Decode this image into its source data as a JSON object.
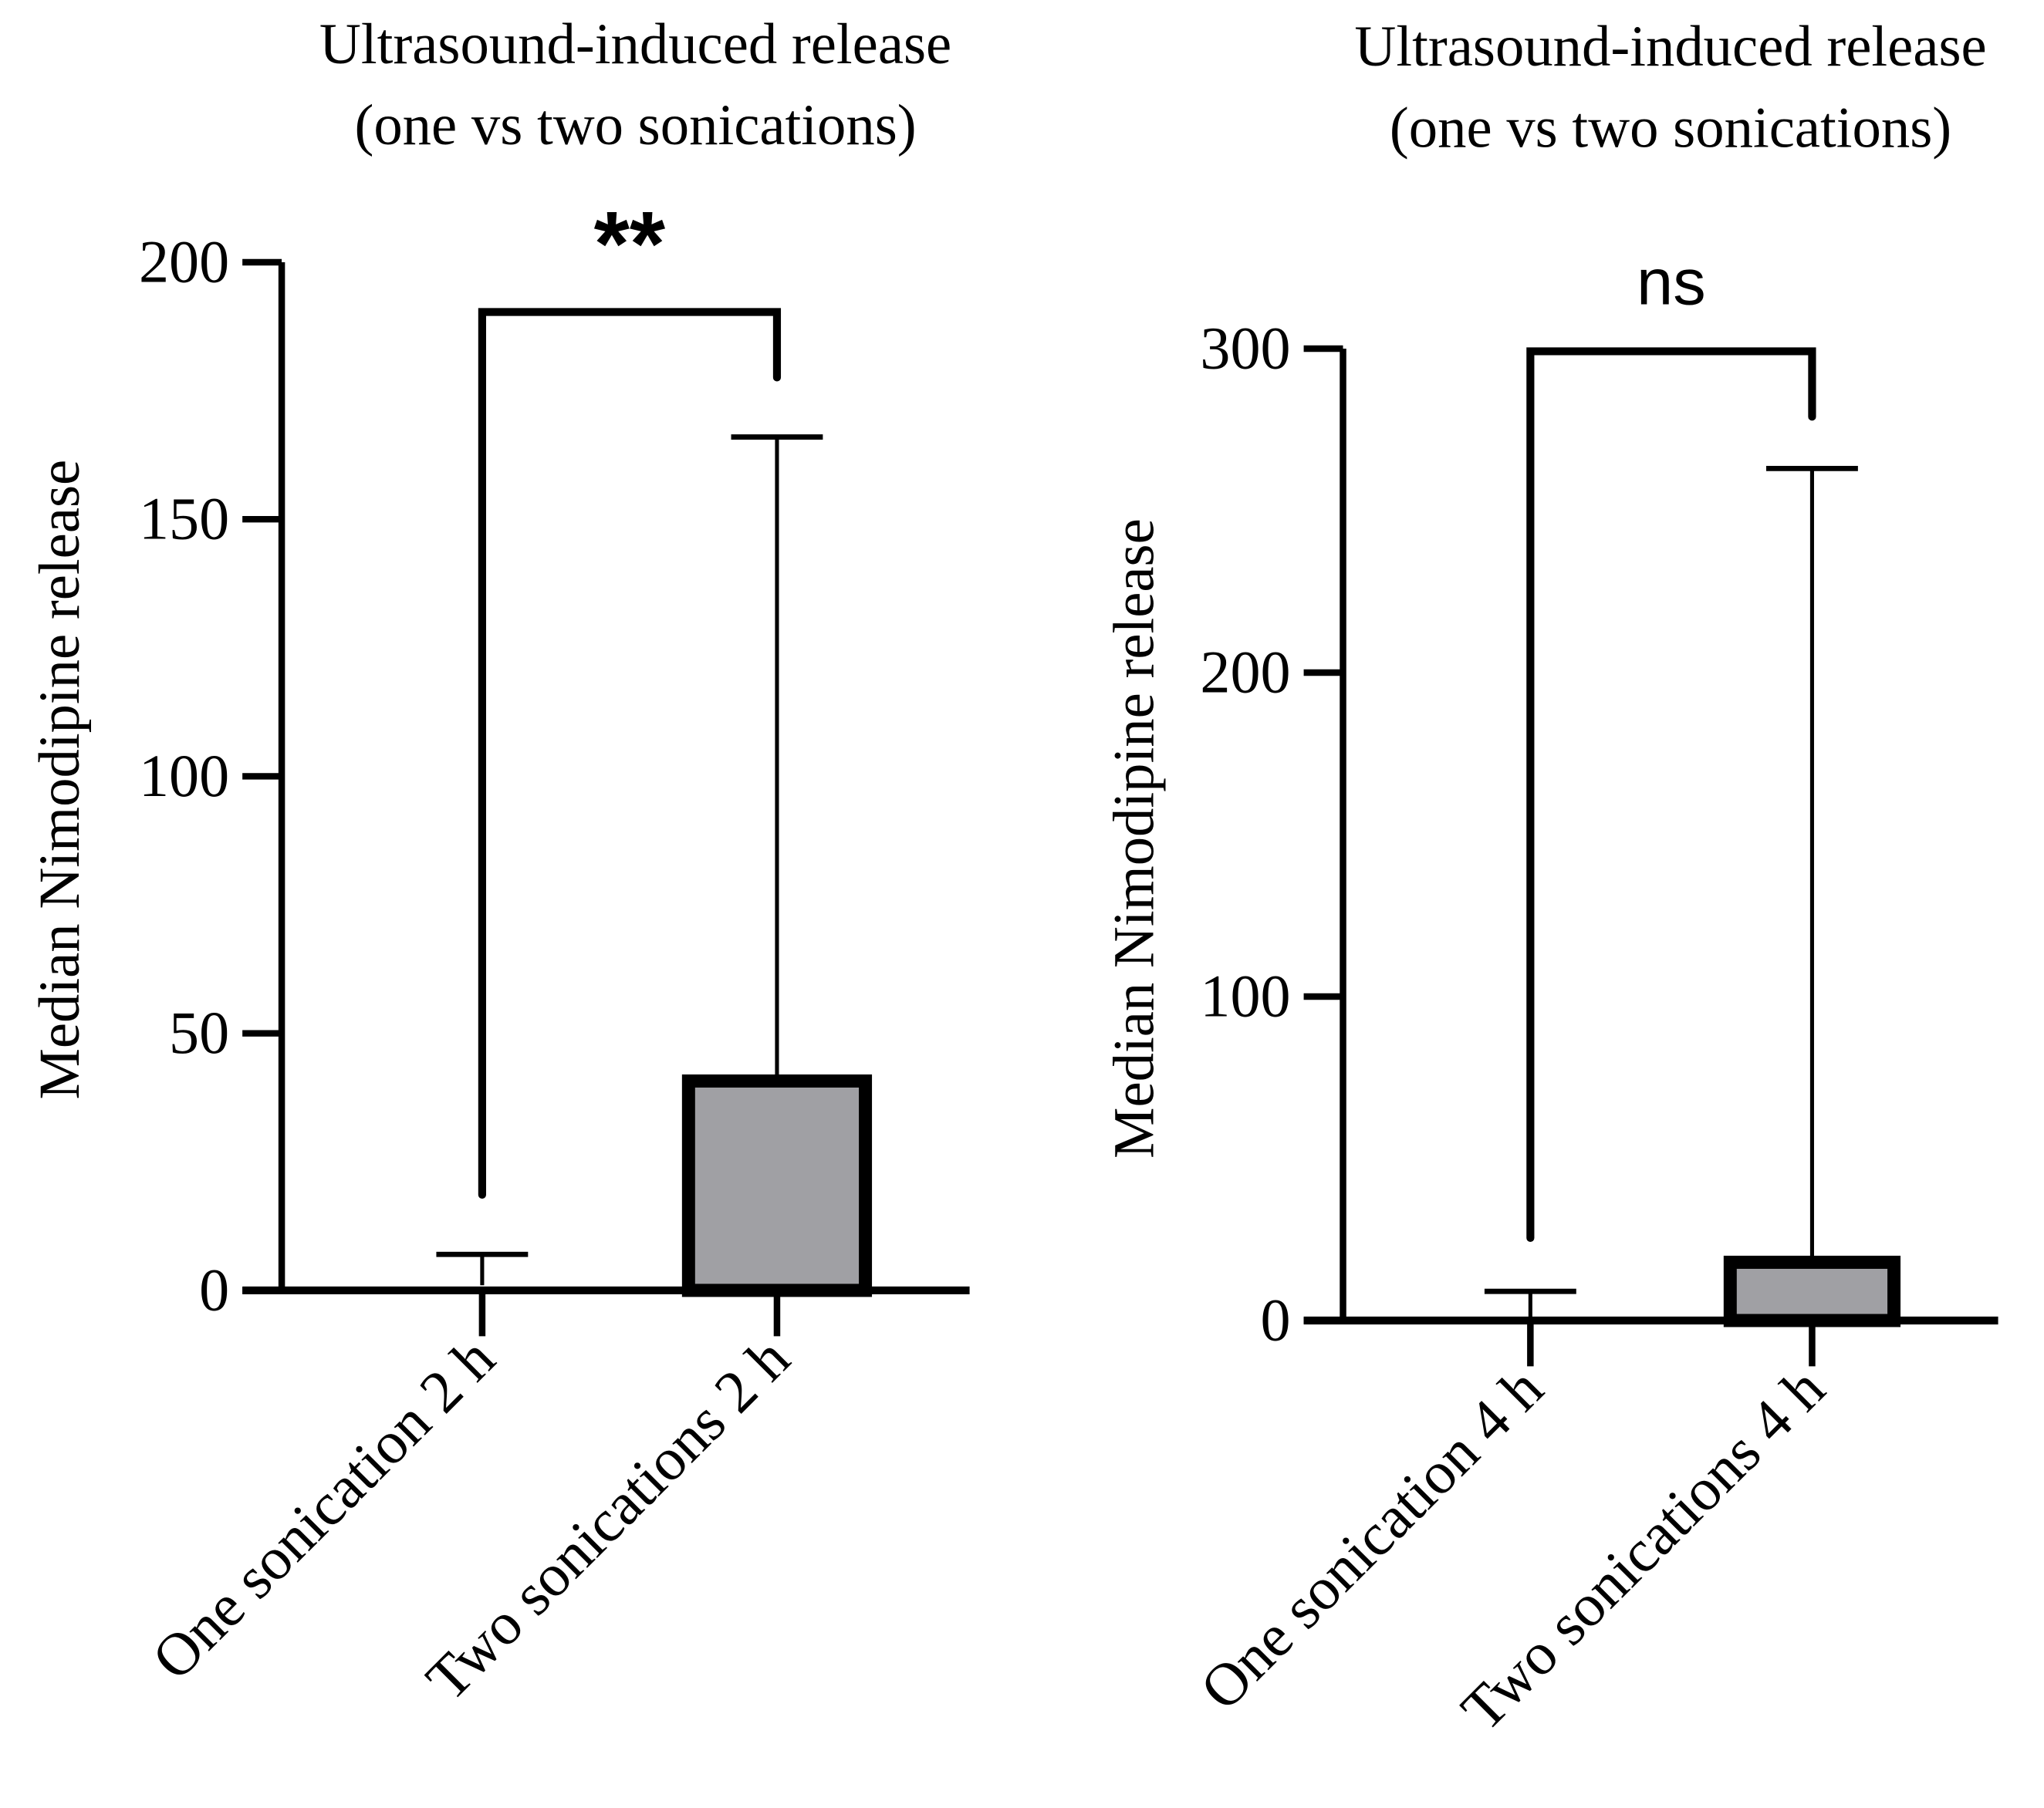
{
  "chart_data": [
    {
      "type": "bar",
      "title": "Ultrasound-induced release\n(one vs two sonications)",
      "title_lines": [
        "Ultrasound-induced release",
        "(one vs two sonications)"
      ],
      "ylabel": "Median Nimodipine release",
      "xlabel": "",
      "categories": [
        "One sonication 2 h",
        "Two sonications 2 h"
      ],
      "values": [
        1,
        42
      ],
      "error_upper": [
        7,
        166
      ],
      "ylim": [
        0,
        200
      ],
      "yticks": [
        0,
        50,
        100,
        150,
        200
      ],
      "significance": {
        "label": "**",
        "between": [
          0,
          1
        ]
      },
      "bar_fill": "#a0a0a4",
      "grid": false
    },
    {
      "type": "bar",
      "title": "Ultrasound-induced release\n(one vs two sonications)",
      "title_lines": [
        "Ultrasound-induced release",
        "(one vs two sonications)"
      ],
      "ylabel": "Median Nimodipine release",
      "xlabel": "",
      "categories": [
        "One sonication 4 h",
        "Two sonications 4 h"
      ],
      "values": [
        0.5,
        20
      ],
      "error_upper": [
        9,
        263
      ],
      "ylim": [
        0,
        300
      ],
      "yticks": [
        0,
        100,
        200,
        300
      ],
      "significance": {
        "label": "ns",
        "between": [
          0,
          1
        ]
      },
      "bar_fill": "#a0a0a4",
      "grid": false
    }
  ]
}
